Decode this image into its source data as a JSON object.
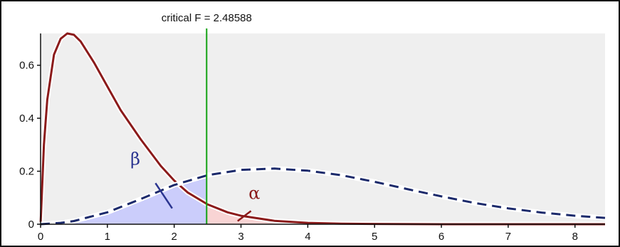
{
  "chart_data": {
    "type": "line",
    "title": "",
    "xlabel": "",
    "ylabel": "",
    "xlim": [
      0,
      8.45
    ],
    "ylim": [
      0,
      0.72
    ],
    "x_ticks": [
      "0",
      "1",
      "2",
      "3",
      "4",
      "5",
      "6",
      "7",
      "8"
    ],
    "y_ticks": [
      "0",
      "0.2",
      "0.4",
      "0.6"
    ],
    "critical_label": "critical F = 2.48588",
    "critical_value": 2.48588,
    "series": [
      {
        "style": "solid",
        "color": "#8b1a1a",
        "x": [
          0.0,
          0.05,
          0.1,
          0.2,
          0.3,
          0.4,
          0.5,
          0.6,
          0.8,
          1.0,
          1.2,
          1.5,
          1.8,
          2.0,
          2.2,
          2.5,
          2.8,
          3.0,
          3.5,
          4.0,
          4.5,
          5.0,
          6.0,
          7.0,
          8.0,
          8.45
        ],
        "y": [
          0.0,
          0.3,
          0.47,
          0.64,
          0.7,
          0.72,
          0.715,
          0.69,
          0.61,
          0.52,
          0.43,
          0.32,
          0.22,
          0.165,
          0.12,
          0.075,
          0.045,
          0.032,
          0.013,
          0.005,
          0.002,
          0.001,
          0.0,
          0.0,
          0.0,
          0.0
        ]
      },
      {
        "style": "dashed",
        "color": "#1c2a6b",
        "x": [
          0.0,
          0.3,
          0.5,
          1.0,
          1.5,
          2.0,
          2.5,
          3.0,
          3.5,
          4.0,
          4.5,
          5.0,
          5.5,
          6.0,
          6.5,
          7.0,
          7.5,
          8.0,
          8.45
        ],
        "y": [
          0.0,
          0.005,
          0.012,
          0.045,
          0.095,
          0.148,
          0.185,
          0.205,
          0.21,
          0.202,
          0.185,
          0.16,
          0.132,
          0.105,
          0.08,
          0.06,
          0.044,
          0.032,
          0.024
        ]
      }
    ],
    "annotations": [
      {
        "label": "β",
        "color": "#2b3590"
      },
      {
        "label": "α",
        "color": "#8b1a1a"
      }
    ],
    "shading": [
      {
        "region": "beta",
        "under": "dashed",
        "from": 0,
        "to": 2.48588,
        "color": "#cbcdfb"
      },
      {
        "region": "alpha",
        "under": "solid",
        "from": 2.48588,
        "to": 4.5,
        "color": "#f8d4d4"
      }
    ],
    "colors": {
      "critical_line": "#13a213",
      "plot_bg": "#efefef"
    }
  }
}
